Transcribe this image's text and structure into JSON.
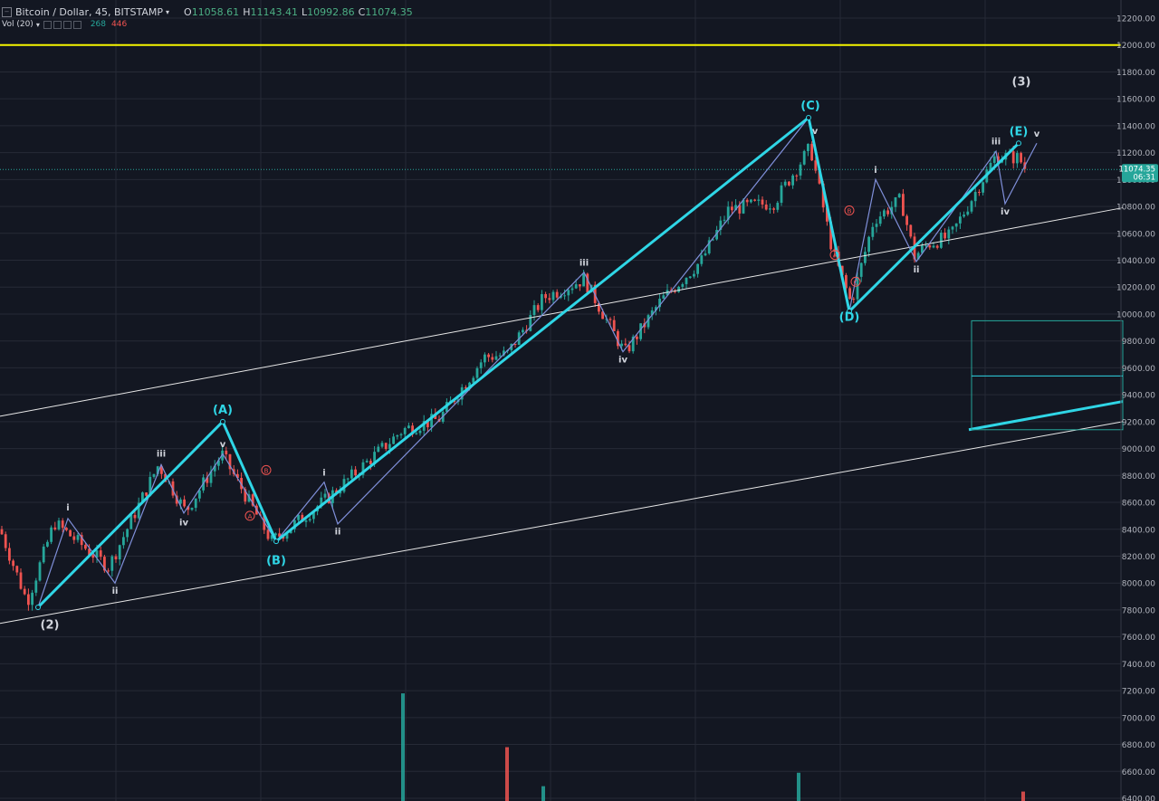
{
  "header": {
    "collapse_icon": "minus-square-icon",
    "symbol": "Bitcoin / Dollar, 45, BITSTAMP",
    "open_label": "O",
    "open": "11058.61",
    "high_label": "H",
    "high": "11143.41",
    "low_label": "L",
    "low": "10992.86",
    "close_label": "C",
    "close": "11074.35"
  },
  "volume": {
    "label": "Vol (20)",
    "value_up": "268",
    "value_down": "446"
  },
  "price_badge": {
    "price": "11074.35",
    "countdown": "06:31",
    "color": "#26a69a"
  },
  "colors": {
    "background": "#131722",
    "grid": "#262a36",
    "up": "#26a69a",
    "down": "#ef5350",
    "impulse": "#2fd6e6",
    "subwave": "#7f8fd9",
    "level": "#f5f500",
    "channel": "#e8e8e8",
    "label_red": "#ef5350"
  },
  "chart_data": {
    "type": "candlestick",
    "title": "Bitcoin / Dollar, 45, BITSTAMP",
    "y_axis": {
      "min": 6400,
      "max": 12200,
      "ticks": [
        "12200.00",
        "12000.00",
        "11800.00",
        "11600.00",
        "11400.00",
        "11200.00",
        "11000.00",
        "10800.00",
        "10600.00",
        "10400.00",
        "10200.00",
        "10000.00",
        "9800.00",
        "9600.00",
        "9400.00",
        "9200.00",
        "9000.00",
        "8800.00",
        "8600.00",
        "8400.00",
        "8200.00",
        "8000.00",
        "7800.00",
        "7600.00",
        "7400.00",
        "7200.00",
        "7000.00",
        "6800.00",
        "6600.00",
        "6400.00"
      ]
    },
    "horizontal_levels": [
      {
        "price": 12000,
        "color": "#f5f500"
      },
      {
        "price": 11074.35,
        "color": "#26a69a",
        "style": "dotted"
      }
    ],
    "close_path": [
      [
        0,
        8400
      ],
      [
        30,
        7860
      ],
      [
        60,
        8450
      ],
      [
        120,
        8120
      ],
      [
        175,
        8880
      ],
      [
        205,
        8530
      ],
      [
        245,
        8960
      ],
      [
        300,
        8310
      ],
      [
        360,
        8620
      ],
      [
        445,
        9140
      ],
      [
        485,
        9220
      ],
      [
        535,
        9680
      ],
      [
        560,
        9700
      ],
      [
        600,
        10120
      ],
      [
        645,
        10260
      ],
      [
        690,
        9710
      ],
      [
        730,
        10100
      ],
      [
        775,
        10400
      ],
      [
        805,
        10780
      ],
      [
        855,
        10830
      ],
      [
        895,
        11240
      ],
      [
        920,
        10450
      ],
      [
        940,
        10080
      ],
      [
        965,
        10700
      ],
      [
        995,
        10850
      ],
      [
        1010,
        10430
      ],
      [
        1025,
        10520
      ],
      [
        1050,
        10580
      ],
      [
        1100,
        11180
      ],
      [
        1125,
        11160
      ],
      [
        1133,
        11074
      ]
    ],
    "channel_lines": [
      {
        "from": [
          "t0",
          9240
        ],
        "to": [
          "t1240",
          10790
        ]
      },
      {
        "from": [
          "t0",
          7700
        ],
        "to": [
          "t1240",
          9200
        ]
      },
      {
        "from": [
          "t1070",
          9140
        ],
        "to": [
          "t1240",
          9350
        ],
        "thick": true
      }
    ],
    "impulse_waves": [
      {
        "points": [
          [
            42,
            7820
          ],
          [
            246,
            9200
          ],
          [
            305,
            8310
          ],
          [
            893,
            11460
          ],
          [
            938,
            10020
          ],
          [
            1125,
            11270
          ]
        ]
      }
    ],
    "sub_waves": [
      [
        [
          42,
          7820
        ],
        [
          75,
          8480
        ],
        [
          127,
          8000
        ],
        [
          178,
          8880
        ],
        [
          203,
          8520
        ],
        [
          246,
          8960
        ],
        [
          305,
          8310
        ]
      ],
      [
        [
          305,
          8310
        ],
        [
          358,
          8750
        ],
        [
          373,
          8440
        ],
        [
          645,
          10310
        ],
        [
          688,
          9720
        ],
        [
          893,
          11460
        ]
      ],
      [
        [
          938,
          10020
        ],
        [
          967,
          11000
        ],
        [
          1012,
          10390
        ],
        [
          1100,
          11210
        ],
        [
          1110,
          10820
        ],
        [
          1145,
          11270
        ]
      ]
    ],
    "wave_labels": [
      {
        "text": "(2)",
        "x": 55,
        "price": 7660,
        "color": "#d1d4dc"
      },
      {
        "text": "(A)",
        "x": 246,
        "price": 9260,
        "color": "#2fd6e6"
      },
      {
        "text": "(B)",
        "x": 305,
        "price": 8140,
        "color": "#2fd6e6"
      },
      {
        "text": "(C)",
        "x": 895,
        "price": 11520,
        "color": "#2fd6e6"
      },
      {
        "text": "(D)",
        "x": 938,
        "price": 9950,
        "color": "#2fd6e6"
      },
      {
        "text": "(E)",
        "x": 1125,
        "price": 11330,
        "color": "#2fd6e6"
      },
      {
        "text": "(3)",
        "x": 1128,
        "price": 11700,
        "color": "#d1d4dc"
      },
      {
        "text": "i",
        "x": 75,
        "price": 8540,
        "color": "#d1d4dc"
      },
      {
        "text": "ii",
        "x": 127,
        "price": 7920,
        "color": "#d1d4dc"
      },
      {
        "text": "iii",
        "x": 178,
        "price": 8940,
        "color": "#d1d4dc"
      },
      {
        "text": "iv",
        "x": 203,
        "price": 8430,
        "color": "#d1d4dc"
      },
      {
        "text": "v",
        "x": 246,
        "price": 9010,
        "color": "#d1d4dc"
      },
      {
        "text": "i",
        "x": 358,
        "price": 8800,
        "color": "#d1d4dc"
      },
      {
        "text": "ii",
        "x": 373,
        "price": 8360,
        "color": "#d1d4dc"
      },
      {
        "text": "iii",
        "x": 645,
        "price": 10360,
        "color": "#d1d4dc"
      },
      {
        "text": "iv",
        "x": 688,
        "price": 9640,
        "color": "#d1d4dc"
      },
      {
        "text": "v",
        "x": 900,
        "price": 11340,
        "color": "#d1d4dc"
      },
      {
        "text": "i",
        "x": 967,
        "price": 11050,
        "color": "#d1d4dc"
      },
      {
        "text": "ii",
        "x": 1012,
        "price": 10310,
        "color": "#d1d4dc"
      },
      {
        "text": "iii",
        "x": 1100,
        "price": 11260,
        "color": "#d1d4dc"
      },
      {
        "text": "iv",
        "x": 1110,
        "price": 10740,
        "color": "#d1d4dc"
      },
      {
        "text": "v",
        "x": 1145,
        "price": 11320,
        "color": "#d1d4dc"
      }
    ],
    "corrective_labels": [
      {
        "text": "A",
        "x": 276,
        "price": 8500
      },
      {
        "text": "B",
        "x": 294,
        "price": 8840
      },
      {
        "text": "A",
        "x": 922,
        "price": 10440
      },
      {
        "text": "B",
        "x": 938,
        "price": 10770
      },
      {
        "text": "C",
        "x": 945,
        "price": 10240
      }
    ],
    "boxes": [
      {
        "from": [
          "t1073",
          9950
        ],
        "to": [
          "t1240",
          9140
        ],
        "color": "#26a69a"
      },
      {
        "from": [
          "t1073",
          9540
        ],
        "to": [
          "t1240",
          9540
        ],
        "color": "#2fd6e6"
      }
    ],
    "volume_bars": [
      {
        "x": 445,
        "height": 7180,
        "color": "#26a69a"
      },
      {
        "x": 560,
        "height": 6780,
        "color": "#ef5350"
      },
      {
        "x": 600,
        "height": 6490,
        "color": "#26a69a"
      },
      {
        "x": 882,
        "height": 6590,
        "color": "#26a69a"
      },
      {
        "x": 1130,
        "height": 6450,
        "color": "#ef5350"
      }
    ]
  }
}
